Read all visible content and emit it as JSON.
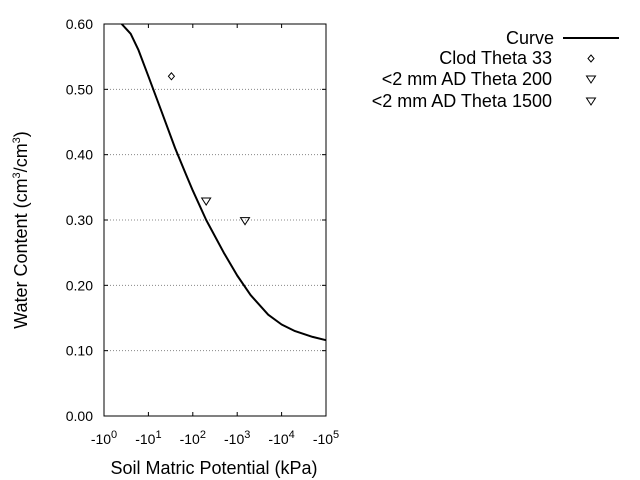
{
  "chart_data": {
    "type": "scatter",
    "xlabel": "Soil Matric Potential (kPa)",
    "ylabel": {
      "prefix": "Water Content (cm",
      "sup1": "3",
      "mid": "/cm",
      "sup2": "3",
      "suffix": ")"
    },
    "x_scale": "log (negative kPa)",
    "xlim": [
      1,
      100000
    ],
    "ylim": [
      0.0,
      0.6
    ],
    "y_ticks": [
      {
        "value": 0.0,
        "label": "0.00"
      },
      {
        "value": 0.1,
        "label": "0.10"
      },
      {
        "value": 0.2,
        "label": "0.20"
      },
      {
        "value": 0.3,
        "label": "0.30"
      },
      {
        "value": 0.4,
        "label": "0.40"
      },
      {
        "value": 0.5,
        "label": "0.50"
      },
      {
        "value": 0.6,
        "label": "0.60"
      }
    ],
    "x_ticks": [
      {
        "value": 1,
        "base": "-10",
        "exp": "0"
      },
      {
        "value": 10,
        "base": "-10",
        "exp": "1"
      },
      {
        "value": 100,
        "base": "-10",
        "exp": "2"
      },
      {
        "value": 1000,
        "base": "-10",
        "exp": "3"
      },
      {
        "value": 10000,
        "base": "-10",
        "exp": "4"
      },
      {
        "value": 100000,
        "base": "-10",
        "exp": "5"
      }
    ],
    "grid": "horizontal dotted",
    "legend_placement": "top-right, outside plot",
    "series": [
      {
        "name": "Curve",
        "kind": "line",
        "color": "#000000",
        "points": [
          [
            2.5,
            0.6
          ],
          [
            4,
            0.585
          ],
          [
            6,
            0.56
          ],
          [
            10,
            0.52
          ],
          [
            20,
            0.465
          ],
          [
            40,
            0.41
          ],
          [
            70,
            0.37
          ],
          [
            100,
            0.345
          ],
          [
            200,
            0.3
          ],
          [
            500,
            0.25
          ],
          [
            1000,
            0.215
          ],
          [
            2000,
            0.185
          ],
          [
            5000,
            0.155
          ],
          [
            10000,
            0.14
          ],
          [
            20000,
            0.13
          ],
          [
            50000,
            0.121
          ],
          [
            100000,
            0.116
          ]
        ]
      },
      {
        "name": "Clod Theta 33",
        "kind": "marker",
        "marker": "diamond",
        "points": [
          [
            33,
            0.52
          ]
        ]
      },
      {
        "name": "<2 mm AD Theta 200",
        "kind": "marker",
        "marker": "triangle-down",
        "points": [
          [
            200,
            0.329
          ]
        ]
      },
      {
        "name": "<2 mm AD Theta 1500",
        "kind": "marker",
        "marker": "triangle-down",
        "points": [
          [
            1500,
            0.299
          ]
        ]
      }
    ]
  }
}
